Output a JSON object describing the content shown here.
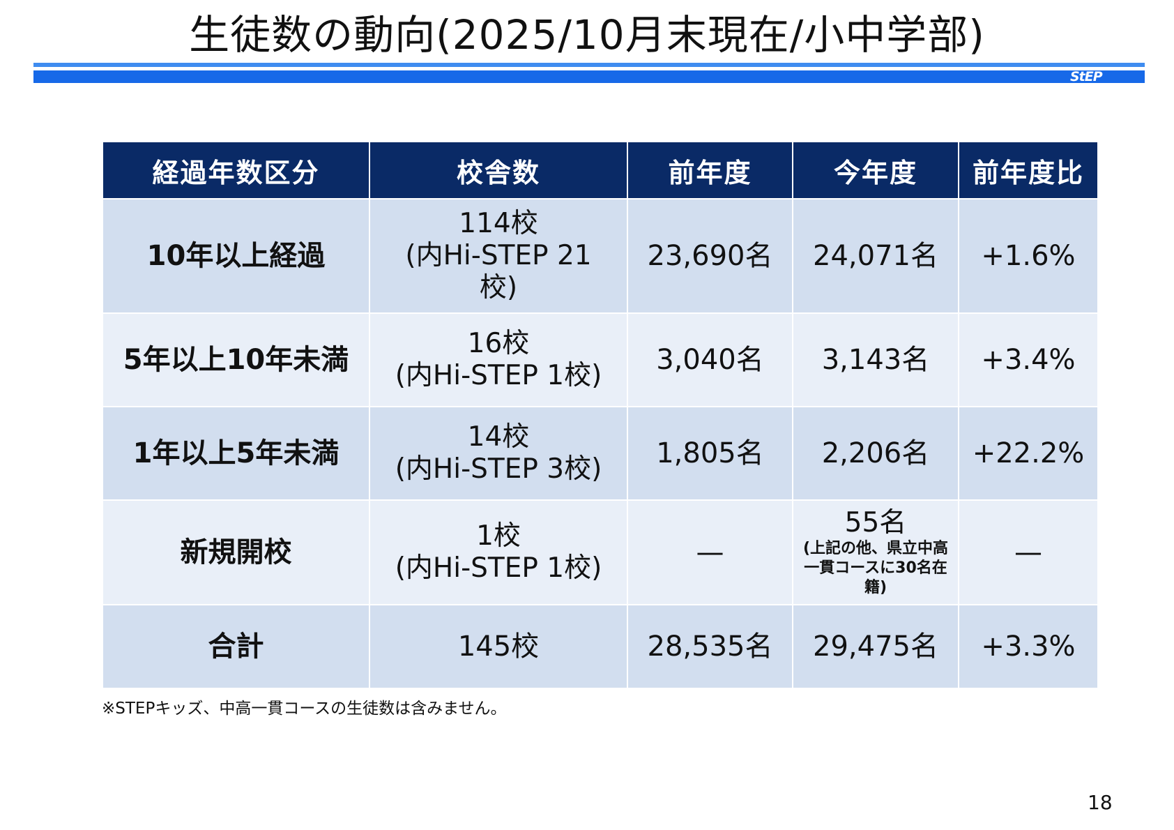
{
  "header": {
    "title": "生徒数の動向(2025/10月末現在/小中学部)",
    "logo_text": "StEP",
    "colors": {
      "bar_light": "#3f8cf0",
      "bar_main": "#1769e8",
      "table_header": "#0a2a66",
      "row_a": "#d2deef",
      "row_b": "#e9eff8"
    }
  },
  "table": {
    "columns": [
      "経過年数区分",
      "校舎数",
      "前年度",
      "今年度",
      "前年度比"
    ],
    "rows": [
      {
        "category": "10年以上経過",
        "schools": "114校",
        "schools_note": "(内Hi-STEP 21校)",
        "prev": "23,690名",
        "curr": "24,071名",
        "curr_note": "",
        "ratio": "+1.6%"
      },
      {
        "category": "5年以上10年未満",
        "schools": "16校",
        "schools_note": "(内Hi-STEP 1校)",
        "prev": "3,040名",
        "curr": "3,143名",
        "curr_note": "",
        "ratio": "+3.4%"
      },
      {
        "category": "1年以上5年未満",
        "schools": "14校",
        "schools_note": "(内Hi-STEP 3校)",
        "prev": "1,805名",
        "curr": "2,206名",
        "curr_note": "",
        "ratio": "+22.2%"
      },
      {
        "category": "新規開校",
        "schools": "1校",
        "schools_note": "(内Hi-STEP 1校)",
        "prev": "—",
        "curr": "55名",
        "curr_note": "(上記の他、県立中高一貫コースに30名在籍)",
        "ratio": "—"
      },
      {
        "category": "合計",
        "schools": "145校",
        "schools_note": "",
        "prev": "28,535名",
        "curr": "29,475名",
        "curr_note": "",
        "ratio": "+3.3%"
      }
    ]
  },
  "footnote": "※STEPキッズ、中高一貫コースの生徒数は含みません。",
  "page_number": "18"
}
